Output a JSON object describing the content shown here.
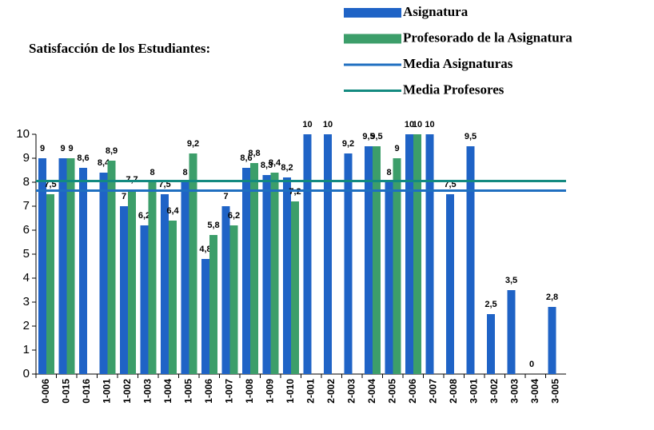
{
  "chart_data": {
    "type": "bar",
    "title": "Satisfacción de los Estudiantes:",
    "categories": [
      "0-006",
      "0-015",
      "0-016",
      "1-001",
      "1-002",
      "1-003",
      "1-004",
      "1-005",
      "1-006",
      "1-007",
      "1-008",
      "1-009",
      "1-010",
      "2-001",
      "2-002",
      "2-003",
      "2-004",
      "2-005",
      "2-006",
      "2-007",
      "2-008",
      "3-001",
      "3-002",
      "3-003",
      "3-004",
      "3-005"
    ],
    "series": [
      {
        "name": "Asignatura",
        "color": "#1f63c6",
        "values": [
          9,
          9,
          8.6,
          8.4,
          7,
          6.2,
          7.5,
          8,
          4.8,
          7,
          8.6,
          8.3,
          8.2,
          10,
          10,
          9.2,
          9.5,
          8,
          10,
          10,
          7.5,
          9.5,
          2.5,
          3.5,
          0,
          2.8
        ],
        "value_labels": [
          "9",
          "9",
          "8,6",
          "8,4",
          "7",
          "6,2",
          "7,5",
          "8",
          "4,8",
          "7",
          "8,6",
          "8,3",
          "8,2",
          "10",
          "10",
          "9,2",
          "9,5",
          "8",
          "10",
          "10",
          "7,5",
          "9,5",
          "2,5",
          "3,5",
          "0",
          "2,8"
        ]
      },
      {
        "name": "Profesorado de la Asignatura",
        "color": "#3c9e6a",
        "values": [
          7.5,
          9,
          null,
          8.9,
          7.7,
          8,
          6.4,
          9.2,
          5.8,
          6.2,
          8.8,
          8.4,
          7.2,
          null,
          null,
          null,
          9.5,
          9,
          10,
          null,
          null,
          null,
          null,
          null,
          null,
          null
        ],
        "value_labels": [
          "7,5",
          "9",
          null,
          "8,9",
          "7,7",
          "8",
          "6,4",
          "9,2",
          "5,8",
          "6,2",
          "8,8",
          "8,4",
          "7,2",
          null,
          null,
          null,
          "9,5",
          "9",
          "10",
          null,
          null,
          null,
          null,
          null,
          null,
          null
        ]
      }
    ],
    "reference_lines": [
      {
        "name": "Media Asignaturas",
        "color": "#1f6fc0",
        "value": 7.65
      },
      {
        "name": "Media Profesores",
        "color": "#138a80",
        "value": 8.05
      }
    ],
    "ylim": [
      0,
      10
    ],
    "yticks": [
      0,
      1,
      2,
      3,
      4,
      5,
      6,
      7,
      8,
      9,
      10
    ]
  }
}
